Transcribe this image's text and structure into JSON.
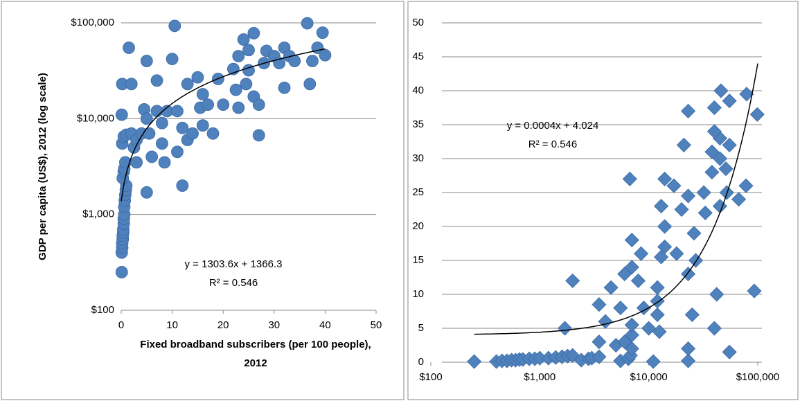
{
  "chart_data": [
    {
      "type": "scatter",
      "marker": "circle",
      "color": "#4f81bd",
      "x_label": [
        "Fixed broadband subscribers (per 100 people),",
        "2012"
      ],
      "y_label": "GDP per capita (US$), 2012 (log scale)",
      "y_log": true,
      "grid": true,
      "xlim": [
        0,
        50
      ],
      "xticks": [
        0,
        10,
        20,
        30,
        40,
        50
      ],
      "ylim": [
        100,
        100000
      ],
      "yticks": [
        {
          "value": 100,
          "label": "$100"
        },
        {
          "value": 1000,
          "label": "$1,000"
        },
        {
          "value": 10000,
          "label": "$10,000"
        },
        {
          "value": 100000,
          "label": "$100,000"
        }
      ],
      "trendline": {
        "label": "y = 1303.6x + 1366.3",
        "r2_label": "R² = 0.546",
        "slope": 1303.6,
        "intercept": 1366.3,
        "x_range": [
          0,
          40
        ]
      },
      "x": [
        0.1,
        0.1,
        0.2,
        0.2,
        0.3,
        0.3,
        0.4,
        0.4,
        0.5,
        0.5,
        0.6,
        0.6,
        0.7,
        0.8,
        0.9,
        1,
        0.3,
        0.5,
        0.6,
        0.8,
        0.2,
        0.5,
        0.1,
        0.2,
        1,
        1.5,
        2,
        2,
        2.5,
        3,
        3,
        4,
        4.5,
        5,
        5,
        5,
        5.5,
        6,
        7,
        7,
        8,
        8,
        8.5,
        9,
        10,
        10.5,
        11,
        11,
        12,
        12,
        13,
        13,
        14,
        15,
        15.5,
        16,
        16,
        17,
        18,
        19,
        20,
        22,
        22.5,
        23,
        23,
        24,
        24.5,
        25,
        25,
        26,
        26,
        27,
        27,
        28,
        28.5,
        30,
        31,
        32,
        32,
        33,
        34,
        36.5,
        37,
        37.5,
        38.5,
        39.5,
        40
      ],
      "y": [
        250,
        400,
        450,
        500,
        550,
        600,
        650,
        700,
        800,
        900,
        1000,
        1200,
        1400,
        1600,
        1800,
        2000,
        2400,
        2800,
        3000,
        3500,
        5500,
        6500,
        11000,
        23000,
        6800,
        55000,
        23000,
        7000,
        5000,
        3500,
        6000,
        7000,
        12500,
        40000,
        1700,
        10000,
        7000,
        4000,
        25000,
        12000,
        5500,
        9000,
        3500,
        12000,
        42000,
        93000,
        12000,
        4500,
        2000,
        8000,
        6000,
        23000,
        7000,
        27000,
        13000,
        18000,
        8500,
        14000,
        7000,
        26000,
        14000,
        33000,
        20000,
        13000,
        45000,
        67000,
        23000,
        52000,
        32000,
        78000,
        17000,
        6700,
        14000,
        38000,
        51000,
        45000,
        38000,
        55000,
        21000,
        45000,
        40000,
        99000,
        23000,
        40000,
        55000,
        79000,
        46000
      ]
    },
    {
      "type": "scatter",
      "marker": "diamond",
      "color": "#4f81bd",
      "x_log": true,
      "grid": true,
      "xlim": [
        100,
        100000
      ],
      "xticks": [
        {
          "value": 100,
          "label": "$100"
        },
        {
          "value": 1000,
          "label": "$1,000"
        },
        {
          "value": 10000,
          "label": "$10,000"
        },
        {
          "value": 100000,
          "label": "$100,000"
        }
      ],
      "ylim": [
        0,
        50
      ],
      "yticks": [
        0,
        5,
        10,
        15,
        20,
        25,
        30,
        35,
        40,
        45,
        50
      ],
      "trendline": {
        "label": "y = 0.0004x + 4.024",
        "r2_label": "R² = 0.546",
        "slope": 0.0004,
        "intercept": 4.024,
        "x_range": [
          250,
          100000
        ]
      },
      "x": [
        250,
        400,
        450,
        500,
        550,
        600,
        650,
        700,
        800,
        900,
        1000,
        1200,
        1400,
        1600,
        1800,
        2000,
        2400,
        2800,
        3000,
        3500,
        5500,
        6500,
        11000,
        23000,
        6800,
        55000,
        23000,
        7000,
        5000,
        3500,
        6000,
        7000,
        12500,
        40000,
        1700,
        10000,
        7000,
        4000,
        25000,
        12000,
        5500,
        9000,
        3500,
        12000,
        42000,
        93000,
        12000,
        4500,
        2000,
        8000,
        6000,
        23000,
        7000,
        27000,
        13000,
        18000,
        8500,
        14000,
        7000,
        26000,
        14000,
        33000,
        20000,
        13000,
        45000,
        67000,
        23000,
        52000,
        32000,
        78000,
        17000,
        6700,
        14000,
        38000,
        51000,
        45000,
        38000,
        55000,
        21000,
        45000,
        40000,
        99000,
        23000,
        40000,
        55000,
        79000,
        46000
      ],
      "y": [
        0.1,
        0.1,
        0.2,
        0.2,
        0.3,
        0.3,
        0.4,
        0.4,
        0.5,
        0.5,
        0.6,
        0.6,
        0.7,
        0.8,
        0.9,
        1,
        0.3,
        0.5,
        0.6,
        0.8,
        0.2,
        0.5,
        0.1,
        0.2,
        1,
        1.5,
        2,
        2,
        2.5,
        3,
        3,
        4,
        4.5,
        5,
        5,
        5,
        5.5,
        6,
        7,
        7,
        8,
        8,
        8.5,
        9,
        10,
        10.5,
        11,
        11,
        12,
        12,
        13,
        13,
        14,
        15,
        15.5,
        16,
        16,
        17,
        18,
        19,
        20,
        22,
        22.5,
        23,
        23,
        24,
        24.5,
        25,
        25,
        26,
        26,
        27,
        27,
        28,
        28.5,
        30,
        31,
        32,
        32,
        33,
        34,
        36.5,
        37,
        37.5,
        38.5,
        39.5,
        40
      ]
    }
  ]
}
